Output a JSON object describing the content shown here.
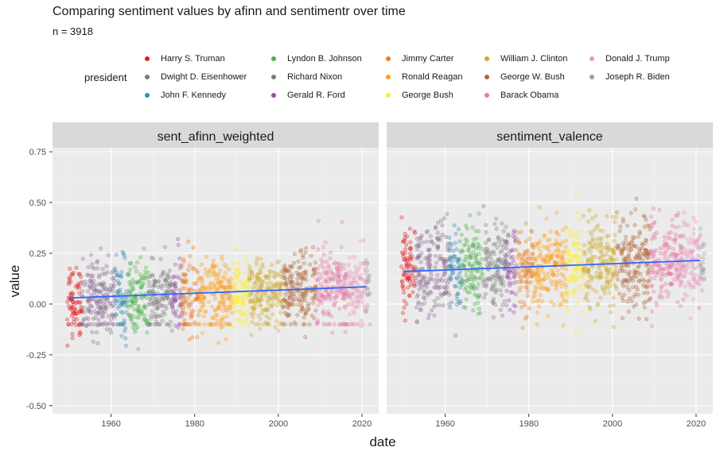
{
  "title": "Comparing sentiment values by afinn and sentimentr over time",
  "subtitle": "n = 3918",
  "legend": {
    "title": "president",
    "items": [
      {
        "name": "Harry S. Truman",
        "color": "#e41a1c"
      },
      {
        "name": "Dwight D. Eisenhower",
        "color": "#8c6d93"
      },
      {
        "name": "John F. Kennedy",
        "color": "#3a8bb0"
      },
      {
        "name": "Lyndon B. Johnson",
        "color": "#4daf4a"
      },
      {
        "name": "Richard Nixon",
        "color": "#7d7d7d"
      },
      {
        "name": "Gerald R. Ford",
        "color": "#984ea3"
      },
      {
        "name": "Jimmy Carter",
        "color": "#e87d24"
      },
      {
        "name": "Ronald Reagan",
        "color": "#ff9f1a"
      },
      {
        "name": "George Bush",
        "color": "#ffee33"
      },
      {
        "name": "William J. Clinton",
        "color": "#cfaa2a"
      },
      {
        "name": "George W. Bush",
        "color": "#b5673a"
      },
      {
        "name": "Barack Obama",
        "color": "#e77aa6"
      },
      {
        "name": "Donald J. Trump",
        "color": "#e89ac0"
      },
      {
        "name": "Joseph R. Biden",
        "color": "#a0a0a0"
      }
    ]
  },
  "chart_data": {
    "type": "scatter",
    "xlabel": "date",
    "ylabel": "value",
    "xlim": [
      1946,
      2024
    ],
    "ylim": [
      -0.54,
      0.77
    ],
    "xticks": [
      "1960",
      "1980",
      "2000",
      "2020"
    ],
    "yticks": [
      "0.75",
      "0.50",
      "0.25",
      "0.00",
      "-0.25",
      "-0.50"
    ],
    "grid": true,
    "legend_position": "top",
    "facets": [
      {
        "name": "sent_afinn_weighted",
        "trend": {
          "x": [
            1950,
            2021
          ],
          "y": [
            0.03,
            0.085
          ]
        }
      },
      {
        "name": "sentiment_valence",
        "trend": {
          "x": [
            1950,
            2021
          ],
          "y": [
            0.16,
            0.215
          ]
        }
      }
    ],
    "terms": [
      {
        "president": "Harry S. Truman",
        "start": 1949.5,
        "end": 1953
      },
      {
        "president": "Dwight D. Eisenhower",
        "start": 1953,
        "end": 1961
      },
      {
        "president": "John F. Kennedy",
        "start": 1961,
        "end": 1963.9
      },
      {
        "president": "Lyndon B. Johnson",
        "start": 1963.9,
        "end": 1969
      },
      {
        "president": "Richard Nixon",
        "start": 1969,
        "end": 1974.6
      },
      {
        "president": "Gerald R. Ford",
        "start": 1974.6,
        "end": 1977
      },
      {
        "president": "Jimmy Carter",
        "start": 1977,
        "end": 1981
      },
      {
        "president": "Ronald Reagan",
        "start": 1981,
        "end": 1989
      },
      {
        "president": "George Bush",
        "start": 1989,
        "end": 1993
      },
      {
        "president": "William J. Clinton",
        "start": 1993,
        "end": 2001
      },
      {
        "president": "George W. Bush",
        "start": 2001,
        "end": 2009
      },
      {
        "president": "Barack Obama",
        "start": 2009,
        "end": 2017
      },
      {
        "president": "Donald J. Trump",
        "start": 2017,
        "end": 2021
      },
      {
        "president": "Joseph R. Biden",
        "start": 2021,
        "end": 2022
      }
    ]
  }
}
